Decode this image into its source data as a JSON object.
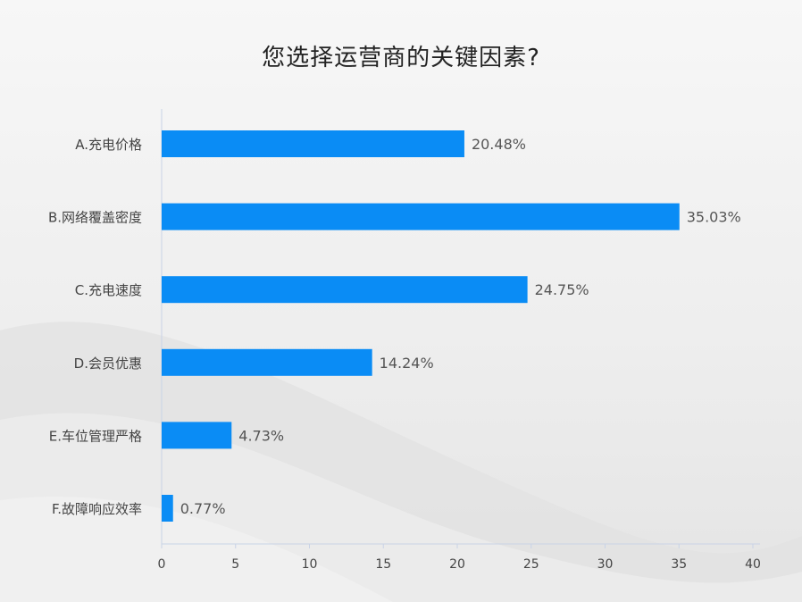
{
  "chart_data": {
    "type": "bar",
    "orientation": "horizontal",
    "title": "您选择运营商的关键因素?",
    "categories": [
      "A.充电价格",
      "B.网络覆盖密度",
      "C.充电速度",
      "D.会员优惠",
      "E.车位管理严格",
      "F.故障响应效率"
    ],
    "values": [
      20.48,
      35.03,
      24.75,
      14.24,
      4.73,
      0.77
    ],
    "value_labels": [
      "20.48%",
      "35.03%",
      "24.75%",
      "14.24%",
      "4.73%",
      "0.77%"
    ],
    "xlim": [
      0,
      40
    ],
    "xticks": [
      0,
      5,
      10,
      15,
      20,
      25,
      30,
      35,
      40
    ],
    "xlabel": "",
    "ylabel": "",
    "grid": false,
    "bar_color": "#0a8cf5"
  }
}
